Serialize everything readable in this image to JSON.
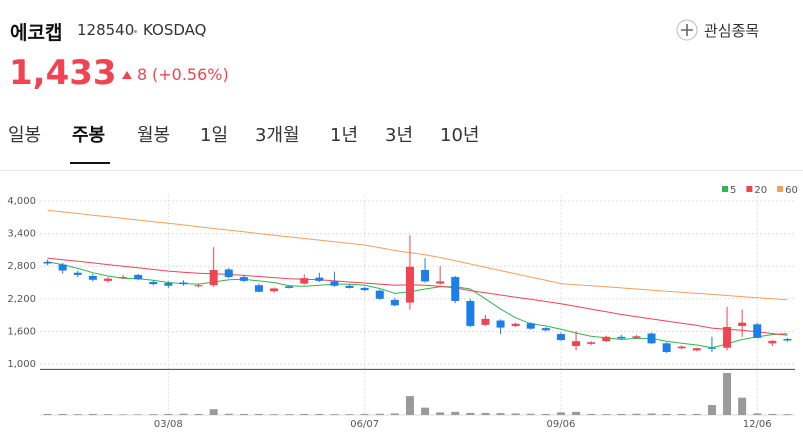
{
  "header": {
    "name": "에코캡",
    "code": "128540",
    "market": "KOSDAQ",
    "watch_button": "관심종목",
    "price": "1,433",
    "change": "8",
    "change_pct": "(+0.56%)"
  },
  "tabs": {
    "items": [
      "일봉",
      "주봉",
      "월봉",
      "1일",
      "3개월",
      "1년",
      "3년",
      "10년"
    ],
    "active": 1
  },
  "chart_data": {
    "type": "candlestick",
    "categories": [
      null,
      null,
      null,
      null,
      null,
      null,
      null,
      null,
      "03/08",
      null,
      null,
      null,
      null,
      null,
      null,
      null,
      null,
      null,
      null,
      null,
      null,
      "06/07",
      null,
      null,
      null,
      null,
      null,
      null,
      null,
      null,
      null,
      null,
      null,
      null,
      "09/06",
      null,
      null,
      null,
      null,
      null,
      null,
      null,
      null,
      null,
      null,
      null,
      null,
      "12/06",
      null,
      null
    ],
    "open": [
      2880,
      2830,
      2680,
      2620,
      2530,
      2580,
      2640,
      2510,
      2490,
      2500,
      2430,
      2450,
      2740,
      2600,
      2450,
      2340,
      2430,
      2480,
      2590,
      2520,
      2440,
      2400,
      2350,
      2180,
      2130,
      2730,
      2480,
      2600,
      2160,
      1720,
      1800,
      1700,
      1750,
      1660,
      1550,
      1330,
      1370,
      1420,
      1500,
      1480,
      1560,
      1380,
      1290,
      1250,
      1300,
      1300,
      1700,
      1730,
      1380,
      1460
    ],
    "high": [
      2920,
      2860,
      2720,
      2660,
      2600,
      2640,
      2660,
      2540,
      2520,
      2540,
      2480,
      3150,
      2770,
      2640,
      2480,
      2410,
      2450,
      2650,
      2680,
      2700,
      2470,
      2420,
      2370,
      2220,
      3370,
      2950,
      2800,
      2620,
      2200,
      1900,
      1820,
      1760,
      1770,
      1680,
      1580,
      1600,
      1420,
      1520,
      1540,
      1530,
      1580,
      1400,
      1340,
      1300,
      1500,
      2050,
      2000,
      1760,
      1440,
      1480
    ],
    "low": [
      2820,
      2660,
      2600,
      2520,
      2500,
      2560,
      2540,
      2450,
      2400,
      2440,
      2410,
      2420,
      2580,
      2510,
      2320,
      2310,
      2390,
      2460,
      2510,
      2420,
      2390,
      2340,
      2180,
      2060,
      2000,
      2500,
      2460,
      2120,
      1680,
      1700,
      1550,
      1680,
      1630,
      1600,
      1430,
      1250,
      1350,
      1400,
      1460,
      1460,
      1370,
      1200,
      1270,
      1230,
      1220,
      1250,
      1500,
      1470,
      1330,
      1410
    ],
    "close": [
      2850,
      2720,
      2640,
      2550,
      2570,
      2600,
      2560,
      2470,
      2440,
      2470,
      2450,
      2730,
      2600,
      2530,
      2330,
      2390,
      2400,
      2580,
      2530,
      2440,
      2400,
      2360,
      2200,
      2080,
      2790,
      2520,
      2520,
      2160,
      1700,
      1830,
      1670,
      1740,
      1650,
      1620,
      1440,
      1420,
      1400,
      1500,
      1470,
      1510,
      1380,
      1220,
      1320,
      1290,
      1280,
      1680,
      1760,
      1480,
      1425,
      1433
    ],
    "up_color": "#f04452",
    "down_color": "#1a7fe8",
    "series": [
      {
        "name": "5",
        "color": "#2db84c",
        "values": [
          2880,
          2830,
          2760,
          2680,
          2620,
          2580,
          2570,
          2540,
          2500,
          2480,
          2470,
          2510,
          2550,
          2560,
          2530,
          2500,
          2440,
          2430,
          2450,
          2470,
          2470,
          2450,
          2390,
          2300,
          2330,
          2380,
          2420,
          2420,
          2380,
          2200,
          2010,
          1850,
          1740,
          1700,
          1640,
          1570,
          1510,
          1480,
          1450,
          1470,
          1470,
          1420,
          1380,
          1350,
          1300,
          1370,
          1450,
          1500,
          1540,
          1560
        ]
      },
      {
        "name": "20",
        "color": "#f04452",
        "values": [
          2950,
          2920,
          2890,
          2860,
          2830,
          2800,
          2770,
          2740,
          2710,
          2690,
          2670,
          2660,
          2650,
          2630,
          2610,
          2590,
          2570,
          2560,
          2550,
          2530,
          2510,
          2490,
          2470,
          2450,
          2460,
          2450,
          2430,
          2400,
          2350,
          2310,
          2270,
          2230,
          2190,
          2150,
          2110,
          2060,
          2010,
          1960,
          1910,
          1870,
          1830,
          1790,
          1750,
          1710,
          1660,
          1640,
          1620,
          1590,
          1560,
          1530
        ]
      },
      {
        "name": "60",
        "color": "#f5a05a",
        "values": [
          3830,
          3800,
          3770,
          3740,
          3710,
          3680,
          3650,
          3620,
          3590,
          3560,
          3525,
          3495,
          3465,
          3435,
          3400,
          3370,
          3340,
          3310,
          3280,
          3250,
          3220,
          3190,
          3140,
          3090,
          3050,
          3010,
          2960,
          2900,
          2840,
          2780,
          2720,
          2660,
          2600,
          2540,
          2480,
          2460,
          2440,
          2420,
          2400,
          2380,
          2360,
          2340,
          2320,
          2300,
          2280,
          2260,
          2240,
          2220,
          2200,
          2180
        ]
      }
    ],
    "volume": {
      "color": "#9a9a9a",
      "values": [
        10,
        10,
        8,
        10,
        8,
        6,
        6,
        8,
        10,
        12,
        10,
        55,
        12,
        10,
        10,
        8,
        8,
        10,
        10,
        8,
        8,
        10,
        12,
        15,
        180,
        70,
        25,
        30,
        20,
        20,
        18,
        15,
        12,
        10,
        25,
        30,
        10,
        8,
        10,
        12,
        15,
        10,
        10,
        10,
        95,
        400,
        165,
        15,
        10,
        8
      ]
    },
    "ylim": [
      900,
      4100
    ],
    "yticks": [
      {
        "value": 1000,
        "label": "1,000"
      },
      {
        "value": 1600,
        "label": "1,600"
      },
      {
        "value": 2200,
        "label": "2,200"
      },
      {
        "value": 2800,
        "label": "2,800"
      },
      {
        "value": 3400,
        "label": "3,400"
      },
      {
        "value": 4000,
        "label": "4,000"
      }
    ],
    "grid": true
  }
}
